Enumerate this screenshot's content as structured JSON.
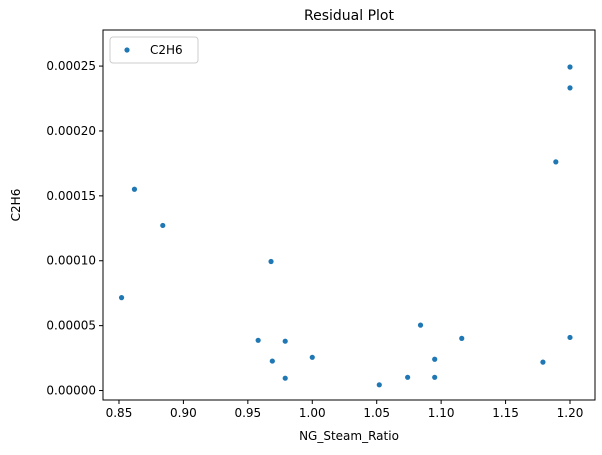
{
  "chart_data": {
    "type": "scatter",
    "title": "Residual Plot",
    "xlabel": "NG_Steam_Ratio",
    "ylabel": "C2H6",
    "series": [
      {
        "name": "C2H6",
        "color": "#1f77b4",
        "x": [
          0.852,
          0.862,
          0.884,
          0.968,
          0.958,
          0.969,
          0.979,
          0.979,
          1.0,
          1.052,
          1.074,
          1.084,
          1.095,
          1.095,
          1.116,
          1.179,
          1.189,
          1.2,
          1.2,
          1.2
        ],
        "values": [
          7.16e-05,
          0.0001551,
          0.0001272,
          9.94e-05,
          3.87e-05,
          2.27e-05,
          3.8e-05,
          9.5e-06,
          2.56e-05,
          4.4e-06,
          1.02e-05,
          5.04e-05,
          2.41e-05,
          1.02e-05,
          4.02e-05,
          2.19e-05,
          0.0001762,
          0.0002493,
          0.0002332,
          4.09e-05
        ]
      }
    ],
    "xlim": [
      0.8376,
      1.2194
    ],
    "ylim": [
      -7.3e-06,
      0.0002778
    ],
    "xticks": [
      {
        "value": 0.85,
        "label": "0.85"
      },
      {
        "value": 0.9,
        "label": "0.90"
      },
      {
        "value": 0.95,
        "label": "0.95"
      },
      {
        "value": 1.0,
        "label": "1.00"
      },
      {
        "value": 1.05,
        "label": "1.05"
      },
      {
        "value": 1.1,
        "label": "1.10"
      },
      {
        "value": 1.15,
        "label": "1.15"
      },
      {
        "value": 1.2,
        "label": "1.20"
      }
    ],
    "yticks": [
      {
        "value": 0,
        "label": "0.00000"
      },
      {
        "value": 5e-05,
        "label": "0.00005"
      },
      {
        "value": 0.0001,
        "label": "0.00010"
      },
      {
        "value": 0.00015,
        "label": "0.00015"
      },
      {
        "value": 0.0002,
        "label": "0.00020"
      },
      {
        "value": 0.00025,
        "label": "0.00025"
      }
    ],
    "legend": "upper left"
  }
}
